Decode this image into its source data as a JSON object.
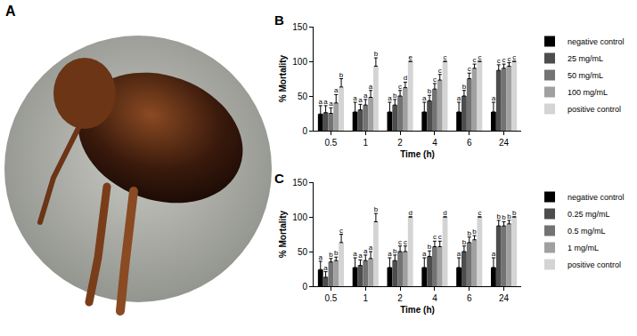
{
  "image_panel": {
    "label": "A"
  },
  "chart_data": [
    {
      "panel": "B",
      "type": "bar",
      "x_label": "Time (h)",
      "y_label": "% Mortality",
      "categories": [
        "0.5",
        "1",
        "2",
        "4",
        "6",
        "24"
      ],
      "ylim": [
        0,
        150
      ],
      "yticks": [
        0,
        50,
        100,
        150
      ],
      "legend": "right",
      "series": [
        {
          "name": "negative control",
          "color": "#000000",
          "values": [
            24,
            27,
            27,
            27,
            27,
            27
          ],
          "error": [
            12,
            14,
            14,
            14,
            14,
            14
          ],
          "letters": [
            "a",
            "a",
            "a",
            "a",
            "a",
            "a"
          ]
        },
        {
          "name": "25 mg/mL",
          "color": "#4d4d4d",
          "values": [
            26,
            30,
            37,
            43,
            50,
            87
          ],
          "error": [
            10,
            8,
            8,
            8,
            8,
            8
          ],
          "letters": [
            "a",
            "a",
            "b",
            "b",
            "b",
            "c"
          ]
        },
        {
          "name": "50 mg/mL",
          "color": "#737373",
          "values": [
            25,
            37,
            50,
            60,
            75,
            90
          ],
          "error": [
            8,
            8,
            8,
            8,
            8,
            6
          ],
          "letters": [
            "a",
            "a",
            "c",
            "c",
            "c",
            "c"
          ]
        },
        {
          "name": "100 mg/mL",
          "color": "#a0a0a0",
          "values": [
            40,
            48,
            62,
            73,
            90,
            93
          ],
          "error": [
            12,
            10,
            8,
            8,
            6,
            5
          ],
          "letters": [
            "a",
            "a",
            "d",
            "c",
            "c",
            "c"
          ]
        },
        {
          "name": "positive control",
          "color": "#d4d4d4",
          "values": [
            63,
            93,
            100,
            100,
            100,
            100
          ],
          "error": [
            12,
            12,
            0,
            0,
            0,
            0
          ],
          "letters": [
            "b",
            "b",
            "e",
            "c",
            "c",
            "c"
          ]
        }
      ]
    },
    {
      "panel": "C",
      "type": "bar",
      "x_label": "Time (h)",
      "y_label": "% Mortality",
      "categories": [
        "0.5",
        "1",
        "2",
        "4",
        "6",
        "24"
      ],
      "ylim": [
        0,
        150
      ],
      "yticks": [
        0,
        50,
        100,
        150
      ],
      "legend": "right",
      "series": [
        {
          "name": "negative control",
          "color": "#000000",
          "values": [
            24,
            27,
            27,
            27,
            27,
            27
          ],
          "error": [
            12,
            14,
            14,
            14,
            14,
            14
          ],
          "letters": [
            "a",
            "a",
            "a",
            "a",
            "a",
            "a"
          ]
        },
        {
          "name": "0.25 mg/mL",
          "color": "#4d4d4d",
          "values": [
            13,
            30,
            37,
            43,
            50,
            87
          ],
          "error": [
            8,
            8,
            8,
            8,
            8,
            8
          ],
          "letters": [
            "a",
            "a",
            "b",
            "b",
            "b",
            "b"
          ]
        },
        {
          "name": "0.5 mg/mL",
          "color": "#737373",
          "values": [
            35,
            37,
            50,
            57,
            63,
            87
          ],
          "error": [
            5,
            8,
            8,
            8,
            8,
            6
          ],
          "letters": [
            "b",
            "a",
            "c",
            "c",
            "b",
            "b"
          ]
        },
        {
          "name": "1 mg/mL",
          "color": "#a0a0a0",
          "values": [
            37,
            40,
            50,
            57,
            67,
            90
          ],
          "error": [
            5,
            10,
            8,
            8,
            6,
            5
          ],
          "letters": [
            "b",
            "a",
            "c",
            "c",
            "b",
            "b"
          ]
        },
        {
          "name": "positive control",
          "color": "#d4d4d4",
          "values": [
            63,
            93,
            100,
            100,
            100,
            100
          ],
          "error": [
            12,
            12,
            0,
            0,
            0,
            0
          ],
          "letters": [
            "c",
            "b",
            "d",
            "d",
            "c",
            "b"
          ]
        }
      ]
    }
  ]
}
